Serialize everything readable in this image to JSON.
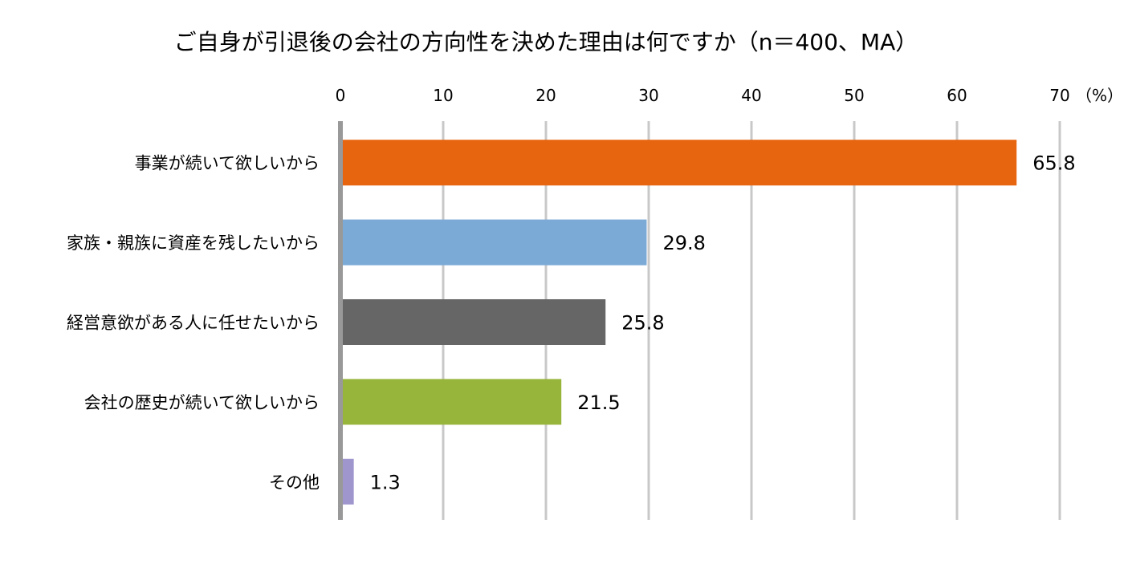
{
  "chart_data": {
    "type": "bar",
    "orientation": "horizontal",
    "title": "ご自身が引退後の会社の方向性を決めた理由は何ですか（n＝400、MA）",
    "unit_label": "（%）",
    "categories": [
      "事業が続いて欲しいから",
      "家族・親族に資産を残したいから",
      "経営意欲がある人に任せたいから",
      "会社の歴史が続いて欲しいから",
      "その他"
    ],
    "values": [
      65.8,
      29.8,
      25.8,
      21.5,
      1.3
    ],
    "value_labels": [
      "65.8",
      "29.8",
      "25.8",
      "21.5",
      "1.3"
    ],
    "colors": [
      "#E8650F",
      "#7BAAD6",
      "#666666",
      "#98B53B",
      "#9E96CC"
    ],
    "xlim": [
      0,
      70
    ],
    "ticks": [
      0,
      10,
      20,
      30,
      40,
      50,
      60,
      70
    ],
    "tick_labels": [
      "0",
      "10",
      "20",
      "30",
      "40",
      "50",
      "60",
      "70"
    ],
    "axis_position": "top",
    "grid": true,
    "grid_color": "#C8C8C8",
    "axis_color": "#999999"
  }
}
